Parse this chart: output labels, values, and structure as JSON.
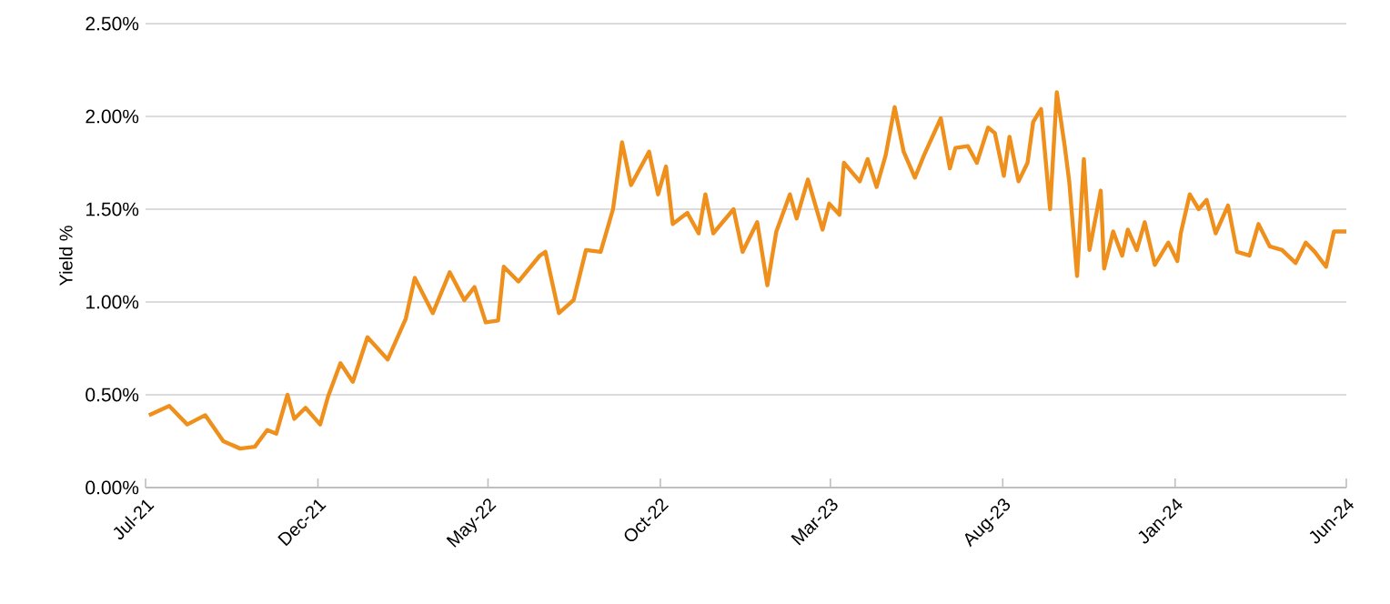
{
  "chart_data": {
    "type": "line",
    "ylabel": "Yield %",
    "xlim": [
      "2021-07-01",
      "2024-06-01"
    ],
    "xticks": [
      {
        "value": "2021-07-01",
        "label": "Jul-21"
      },
      {
        "value": "2021-12-01",
        "label": "Dec-21"
      },
      {
        "value": "2022-05-01",
        "label": "May-22"
      },
      {
        "value": "2022-10-01",
        "label": "Oct-22"
      },
      {
        "value": "2023-03-01",
        "label": "Mar-23"
      },
      {
        "value": "2023-08-01",
        "label": "Aug-23"
      },
      {
        "value": "2024-01-01",
        "label": "Jan-24"
      },
      {
        "value": "2024-06-01",
        "label": "Jun-24"
      }
    ],
    "ylim": [
      0,
      2.5
    ],
    "yticks": [
      {
        "value": 0,
        "label": "0.00%"
      },
      {
        "value": 0.5,
        "label": "0.50%"
      },
      {
        "value": 1,
        "label": "1.00%"
      },
      {
        "value": 1.5,
        "label": "1.50%"
      },
      {
        "value": 2,
        "label": "2.00%"
      },
      {
        "value": 2.5,
        "label": "2.50%"
      }
    ],
    "grid": "y",
    "legend": false,
    "marker": "none",
    "line_style": "solid",
    "series": [
      {
        "color": "#ef8f1c",
        "x": [
          "2021-07-04",
          "2021-07-22",
          "2021-08-07",
          "2021-08-23",
          "2021-09-08",
          "2021-09-23",
          "2021-10-06",
          "2021-10-17",
          "2021-10-25",
          "2021-11-04",
          "2021-11-10",
          "2021-11-20",
          "2021-12-03",
          "2021-12-10",
          "2021-12-21",
          "2022-01-01",
          "2022-01-14",
          "2022-02-01",
          "2022-02-17",
          "2022-02-25",
          "2022-03-13",
          "2022-03-28",
          "2022-04-10",
          "2022-04-19",
          "2022-04-29",
          "2022-05-10",
          "2022-05-15",
          "2022-05-28",
          "2022-06-16",
          "2022-06-21",
          "2022-07-03",
          "2022-07-16",
          "2022-07-27",
          "2022-08-09",
          "2022-08-20",
          "2022-08-28",
          "2022-09-05",
          "2022-09-21",
          "2022-09-29",
          "2022-10-06",
          "2022-10-12",
          "2022-10-25",
          "2022-11-04",
          "2022-11-10",
          "2022-11-17",
          "2022-12-05",
          "2022-12-13",
          "2022-12-26",
          "2023-01-04",
          "2023-01-12",
          "2023-01-24",
          "2023-01-30",
          "2023-02-09",
          "2023-02-22",
          "2023-02-28",
          "2023-03-09",
          "2023-03-13",
          "2023-03-27",
          "2023-04-03",
          "2023-04-11",
          "2023-04-19",
          "2023-04-27",
          "2023-05-05",
          "2023-05-15",
          "2023-05-23",
          "2023-06-07",
          "2023-06-15",
          "2023-06-20",
          "2023-07-01",
          "2023-07-09",
          "2023-07-19",
          "2023-07-25",
          "2023-08-02",
          "2023-08-07",
          "2023-08-15",
          "2023-08-23",
          "2023-08-28",
          "2023-09-04",
          "2023-09-12",
          "2023-09-18",
          "2023-09-25",
          "2023-09-29",
          "2023-10-06",
          "2023-10-12",
          "2023-10-17",
          "2023-10-27",
          "2023-10-30",
          "2023-11-07",
          "2023-11-15",
          "2023-11-20",
          "2023-11-28",
          "2023-12-05",
          "2023-12-14",
          "2023-12-26",
          "2024-01-03",
          "2024-01-06",
          "2024-01-14",
          "2024-01-22",
          "2024-01-29",
          "2024-02-06",
          "2024-02-17",
          "2024-02-25",
          "2024-03-07",
          "2024-03-15",
          "2024-03-25",
          "2024-04-05",
          "2024-04-17",
          "2024-04-26",
          "2024-05-04",
          "2024-05-14",
          "2024-05-21",
          "2024-06-01"
        ],
        "values": [
          0.39,
          0.44,
          0.34,
          0.39,
          0.25,
          0.21,
          0.22,
          0.31,
          0.29,
          0.5,
          0.37,
          0.43,
          0.34,
          0.49,
          0.67,
          0.57,
          0.81,
          0.69,
          0.91,
          1.13,
          0.94,
          1.16,
          1.01,
          1.08,
          0.89,
          0.9,
          1.19,
          1.11,
          1.25,
          1.27,
          0.94,
          1.01,
          1.28,
          1.27,
          1.5,
          1.86,
          1.63,
          1.81,
          1.58,
          1.73,
          1.42,
          1.48,
          1.37,
          1.58,
          1.37,
          1.5,
          1.27,
          1.43,
          1.09,
          1.38,
          1.58,
          1.45,
          1.66,
          1.39,
          1.53,
          1.47,
          1.75,
          1.65,
          1.77,
          1.62,
          1.79,
          2.05,
          1.81,
          1.67,
          1.79,
          1.99,
          1.72,
          1.83,
          1.84,
          1.75,
          1.94,
          1.91,
          1.68,
          1.89,
          1.65,
          1.75,
          1.97,
          2.04,
          1.5,
          2.13,
          1.84,
          1.65,
          1.14,
          1.77,
          1.28,
          1.6,
          1.18,
          1.38,
          1.25,
          1.39,
          1.28,
          1.43,
          1.2,
          1.32,
          1.22,
          1.37,
          1.58,
          1.5,
          1.55,
          1.37,
          1.52,
          1.27,
          1.25,
          1.42,
          1.3,
          1.28,
          1.21,
          1.32,
          1.27,
          1.19,
          1.38,
          1.38
        ]
      }
    ]
  }
}
